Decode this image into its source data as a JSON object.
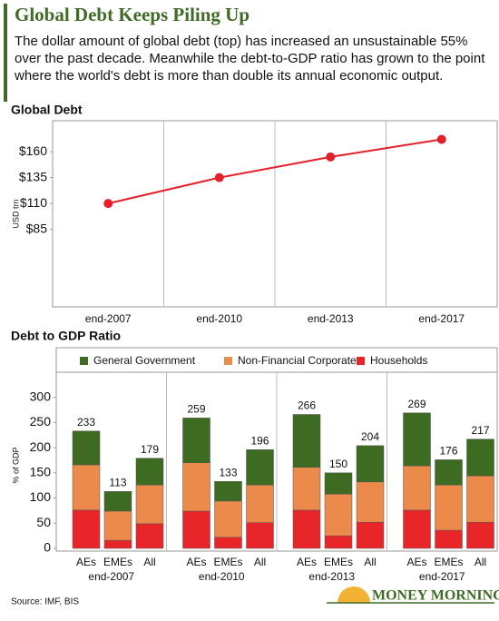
{
  "title": "Global Debt Keeps Piling Up",
  "description": "The dollar amount of global debt (top) has increased an unsustainable 55% over the past decade. Meanwhile the debt-to-GDP ratio has grown to the point where the world's debt is more than double its annual economic output.",
  "source": "Source: IMF, BIS",
  "brand": "MONEY MORNING",
  "chart_data": [
    {
      "type": "line",
      "title": "Global Debt",
      "y_label": "USD trn",
      "categories": [
        "end-2007",
        "end-2010",
        "end-2013",
        "end-2017"
      ],
      "values": [
        110,
        135,
        155,
        172
      ],
      "color": "#e3202a",
      "ylim": [
        10,
        190
      ],
      "yticks": [
        {
          "value": 85,
          "label": "$85"
        },
        {
          "value": 110,
          "label": "$110"
        },
        {
          "value": 135,
          "label": "$135"
        },
        {
          "value": 160,
          "label": "$160"
        }
      ],
      "grid": false
    },
    {
      "type": "stacked_bar",
      "title": "Debt to GDP Ratio",
      "y_label": "% of GDP",
      "legend": "top",
      "groups": [
        "end-2007",
        "end-2010",
        "end-2013",
        "end-2017"
      ],
      "categories": [
        "AEs",
        "EMEs",
        "All",
        "AEs",
        "EMEs",
        "All",
        "AEs",
        "EMEs",
        "All",
        "AEs",
        "EMEs",
        "All"
      ],
      "series": [
        {
          "name": "General Government",
          "color": "#3d6b22",
          "values": [
            67,
            39,
            53,
            89,
            39,
            70,
            105,
            42,
            72,
            105,
            50,
            73
          ]
        },
        {
          "name": "Non-Financial Corporates",
          "color": "#ec8a4c",
          "values": [
            90,
            58,
            77,
            96,
            72,
            75,
            85,
            83,
            80,
            88,
            90,
            92
          ]
        },
        {
          "name": "Households",
          "color": "#e8262a",
          "values": [
            76,
            16,
            49,
            74,
            22,
            51,
            76,
            25,
            52,
            76,
            36,
            52
          ]
        }
      ],
      "totals": [
        233,
        113,
        179,
        259,
        133,
        196,
        266,
        150,
        204,
        269,
        176,
        217
      ],
      "ylim": [
        0,
        330
      ],
      "yticks": [
        0,
        50,
        100,
        150,
        200,
        250,
        300
      ],
      "grid": false
    }
  ]
}
